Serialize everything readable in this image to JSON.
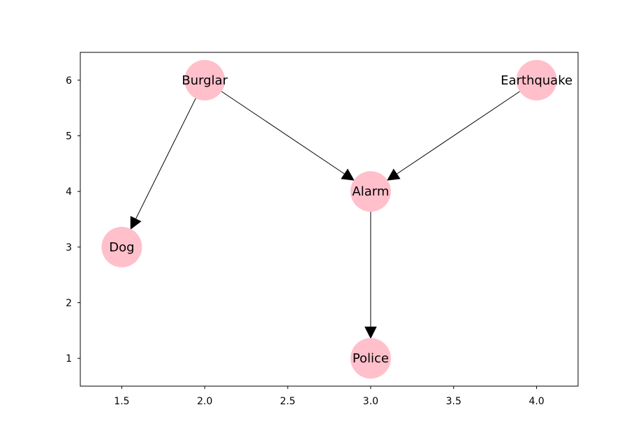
{
  "chart_data": {
    "type": "network",
    "xlim": [
      1.25,
      4.25
    ],
    "ylim": [
      0.5,
      6.5
    ],
    "xticks": [
      1.5,
      2.0,
      2.5,
      3.0,
      3.5,
      4.0
    ],
    "xtick_labels": [
      "1.5",
      "2.0",
      "2.5",
      "3.0",
      "3.5",
      "4.0"
    ],
    "yticks": [
      1,
      2,
      3,
      4,
      5,
      6
    ],
    "ytick_labels": [
      "1",
      "2",
      "3",
      "4",
      "5",
      "6"
    ],
    "grid": false,
    "node_color": "#ffc0cb",
    "edge_color": "#000000",
    "nodes": [
      {
        "id": "burglar",
        "label": "Burglar",
        "x": 2.0,
        "y": 6
      },
      {
        "id": "earthquake",
        "label": "Earthquake",
        "x": 4.0,
        "y": 6
      },
      {
        "id": "alarm",
        "label": "Alarm",
        "x": 3.0,
        "y": 4
      },
      {
        "id": "dog",
        "label": "Dog",
        "x": 1.5,
        "y": 3
      },
      {
        "id": "police",
        "label": "Police",
        "x": 3.0,
        "y": 1
      }
    ],
    "edges": [
      {
        "from": "burglar",
        "to": "dog"
      },
      {
        "from": "burglar",
        "to": "alarm"
      },
      {
        "from": "earthquake",
        "to": "alarm"
      },
      {
        "from": "alarm",
        "to": "police"
      }
    ]
  }
}
